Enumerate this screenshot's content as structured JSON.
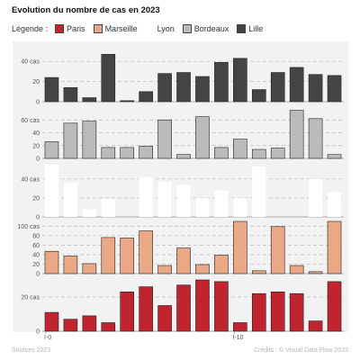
{
  "title": "Evolution du nombre de cas en 2023",
  "legend": {
    "label": "Légende :",
    "items": [
      {
        "name": "Paris",
        "color": "#c0252f"
      },
      {
        "name": "Marseille",
        "color": "#eba886"
      },
      {
        "name": "Lyon",
        "color": "#ffffff"
      },
      {
        "name": "Bordeaux",
        "color": "#bbbbbb"
      },
      {
        "name": "Lille",
        "color": "#444444"
      }
    ]
  },
  "footer": {
    "source": "Sources 2023",
    "credits": "Crédits : © Visual Data Flow 2023"
  },
  "chart_data": {
    "type": "bar",
    "layout": "small-multiples",
    "categories": [
      "I-0",
      "",
      "",
      "",
      "",
      "",
      "",
      "",
      "",
      "",
      "I-10",
      "",
      "",
      "",
      "",
      ""
    ],
    "x_tick_labels": [
      "I-0",
      "I-10"
    ],
    "grid": true,
    "series": [
      {
        "name": "Lille",
        "color": "#444444",
        "ylim": [
          0,
          50
        ],
        "ticks": [
          0,
          20,
          40
        ],
        "tick_labels": [
          "0",
          "20",
          "40 cas"
        ],
        "values": [
          24,
          14,
          4,
          47,
          1,
          10,
          28,
          29,
          25,
          39,
          43,
          12,
          29,
          34,
          27,
          26
        ]
      },
      {
        "name": "Bordeaux",
        "color": "#bbbbbb",
        "ylim": [
          0,
          80
        ],
        "ticks": [
          0,
          20,
          40,
          60
        ],
        "tick_labels": [
          "0",
          "20",
          "40",
          "60 cas"
        ],
        "values": [
          26,
          55,
          58,
          17,
          17,
          19,
          60,
          6,
          65,
          17,
          30,
          14,
          16,
          75,
          62,
          6
        ]
      },
      {
        "name": "Lyon",
        "color": "#ffffff",
        "ylim": [
          0,
          55
        ],
        "ticks": [
          0,
          20,
          40
        ],
        "tick_labels": [
          "0",
          "20",
          "40 cas"
        ],
        "values": [
          55,
          36,
          8,
          19,
          0,
          42,
          37,
          34,
          20,
          28,
          20,
          53,
          0,
          0,
          40,
          26
        ]
      },
      {
        "name": "Marseille",
        "color": "#eba886",
        "ylim": [
          0,
          110
        ],
        "ticks": [
          0,
          20,
          40,
          60,
          80,
          100
        ],
        "tick_labels": [
          "0",
          "20",
          "40",
          "60",
          "80",
          "100 cas"
        ],
        "values": [
          47,
          37,
          21,
          76,
          75,
          90,
          17,
          54,
          19,
          39,
          115,
          6,
          99,
          17,
          4,
          115
        ]
      },
      {
        "name": "Paris",
        "color": "#c0252f",
        "ylim": [
          0,
          30
        ],
        "ticks": [
          0,
          20
        ],
        "tick_labels": [
          "0",
          "20 cas"
        ],
        "values": [
          11,
          7,
          9,
          5,
          23,
          26,
          15,
          27,
          31,
          29,
          5,
          22,
          23,
          22,
          6,
          29
        ]
      }
    ]
  }
}
